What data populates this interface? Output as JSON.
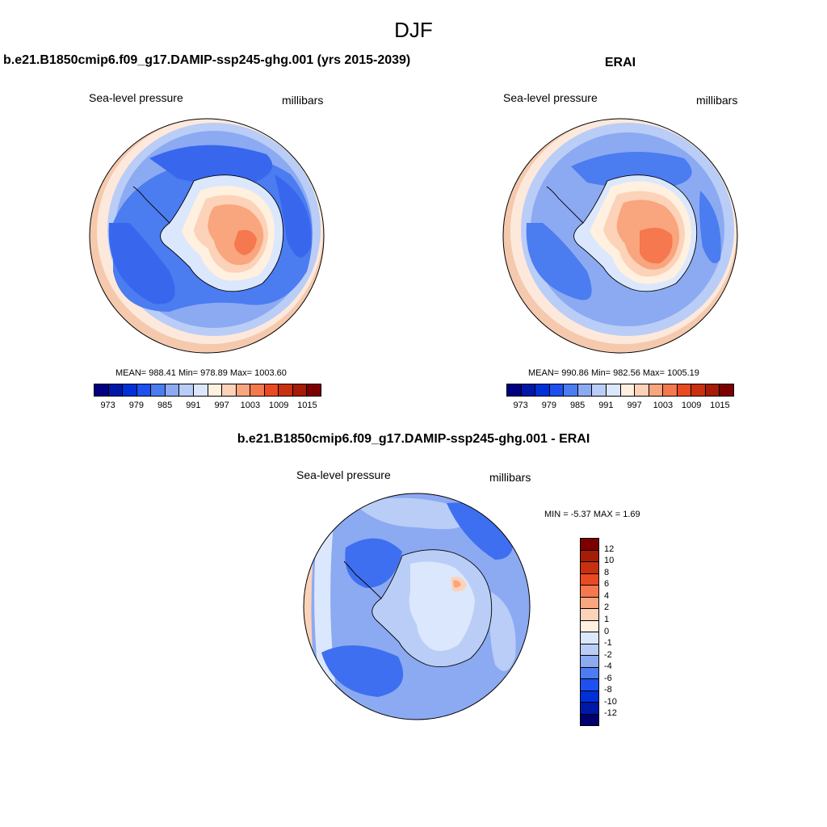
{
  "page_title": "DJF",
  "colors": {
    "abs_scale": [
      "#000080",
      "#0018a8",
      "#0030d8",
      "#1e50f0",
      "#4b7cf0",
      "#8caaf2",
      "#b9cdf7",
      "#dbe7fc",
      "#fff0e0",
      "#fcd2b8",
      "#f9a57e",
      "#f5784e",
      "#ea4a22",
      "#c8300f",
      "#a51c08",
      "#7c0000"
    ],
    "diff_scale": [
      "#000070",
      "#0018a8",
      "#0030d8",
      "#1e50f0",
      "#4b7cf0",
      "#8caaf2",
      "#b9cdf7",
      "#dbe7fc",
      "#fff0e0",
      "#fcd2b8",
      "#f9a57e",
      "#f5784e",
      "#ea4a22",
      "#c8300f",
      "#a51c08",
      "#7c0000"
    ]
  },
  "panels": {
    "model": {
      "title": "b.e21.B1850cmip6.f09_g17.DAMIP-ssp245-ghg.001 (yrs 2015-2039)",
      "variable": "Sea-level pressure",
      "units": "millibars",
      "stats": "MEAN= 988.41  Min= 978.89  Max= 1003.60",
      "ticks": [
        "973",
        "979",
        "985",
        "991",
        "997",
        "1003",
        "1009",
        "1015"
      ]
    },
    "obs": {
      "title": "ERAI",
      "variable": "Sea-level pressure",
      "units": "millibars",
      "stats": "MEAN= 990.86  Min= 982.56  Max= 1005.19",
      "ticks": [
        "973",
        "979",
        "985",
        "991",
        "997",
        "1003",
        "1009",
        "1015"
      ]
    },
    "diff": {
      "title": "b.e21.B1850cmip6.f09_g17.DAMIP-ssp245-ghg.001 - ERAI",
      "variable": "Sea-level pressure",
      "units": "millibars",
      "stats": "MIN =  -5.37 MAX =   1.69",
      "ticks": [
        "12",
        "10",
        "8",
        "6",
        "4",
        "2",
        "1",
        "0",
        "-1",
        "-2",
        "-4",
        "-6",
        "-8",
        "-10",
        "-12"
      ]
    }
  }
}
